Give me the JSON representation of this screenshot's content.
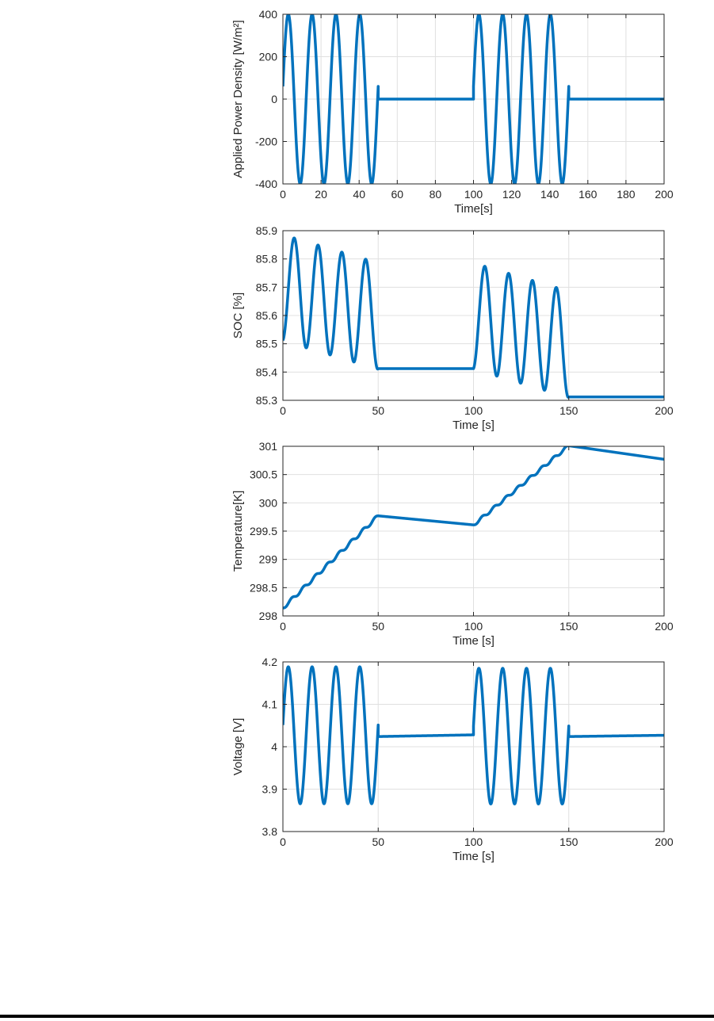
{
  "page": {
    "background": "#ffffff",
    "bottom_border_color": "#000000"
  },
  "chart_data": [
    {
      "id": "applied-power-density",
      "type": "line",
      "title": "",
      "xlabel": "Time[s]",
      "ylabel": "Applied Power Density [W/m²]",
      "xlim": [
        0,
        200
      ],
      "ylim": [
        -400,
        400
      ],
      "grid": true,
      "legend": "none",
      "line": {
        "color": "#0072BD",
        "width": 3.5
      },
      "xticks": {
        "values": [
          0,
          20,
          40,
          60,
          80,
          100,
          120,
          140,
          160,
          180,
          200
        ],
        "labels": [
          "0",
          "20",
          "40",
          "60",
          "80",
          "100",
          "120",
          "140",
          "160",
          "180",
          "200"
        ]
      },
      "yticks": {
        "values": [
          -400,
          -200,
          0,
          200,
          400
        ],
        "labels": [
          "-400",
          "-200",
          "0",
          "200",
          "400"
        ]
      },
      "description": "Sinusoidal power bursts of amplitude 400 W/m2, period 12.5 s, applied during 0-50 s and 100-150 s; zero during 50-100 s and 150-200 s.",
      "segments": [
        {
          "t0": 0,
          "t1": 50,
          "a": 0,
          "b": 0,
          "c": 400,
          "period": 12.5,
          "phase": -1.4208
        },
        {
          "t0": 50,
          "t1": 100,
          "a": 0,
          "b": 0,
          "c": 0,
          "period": 1,
          "phase": 0
        },
        {
          "t0": 100,
          "t1": 150,
          "a": 0,
          "b": 0,
          "c": 400,
          "period": 12.5,
          "phase": -1.4208
        },
        {
          "t0": 150,
          "t1": 200,
          "a": 0,
          "b": 0,
          "c": 0,
          "period": 1,
          "phase": 0
        }
      ]
    },
    {
      "id": "soc",
      "type": "line",
      "title": "",
      "xlabel": "Time [s]",
      "ylabel": "SOC [%]",
      "xlim": [
        0,
        200
      ],
      "ylim": [
        85.3,
        85.9
      ],
      "grid": true,
      "legend": "none",
      "line": {
        "color": "#0072BD",
        "width": 3.5
      },
      "xticks": {
        "values": [
          0,
          50,
          100,
          150,
          200
        ],
        "labels": [
          "0",
          "50",
          "100",
          "150",
          "200"
        ]
      },
      "yticks": {
        "values": [
          85.3,
          85.4,
          85.5,
          85.6,
          85.7,
          85.8,
          85.9
        ],
        "labels": [
          "85.3",
          "85.4",
          "85.5",
          "85.6",
          "85.7",
          "85.8",
          "85.9"
        ]
      },
      "description": "SOC starts at 85.51%, oscillates (peaks 85.87 down to 85.80, troughs 85.49 down to 85.44) during 0-50 s, holds 85.41% during 50-100 s, oscillates again (peaks 85.78 down to 85.71) during 100-150 s, holds 85.31% during 150-200 s.",
      "segments": [
        {
          "t0": 0,
          "t1": 50,
          "a": 85.698,
          "b": -0.002,
          "c": -0.188,
          "period": 12.5,
          "phase": 0.15
        },
        {
          "t0": 50,
          "t1": 100,
          "a": 85.412,
          "b": 0,
          "c": 0,
          "period": 1,
          "phase": 0
        },
        {
          "t0": 100,
          "t1": 150,
          "a": 85.598,
          "b": -0.002,
          "c": -0.188,
          "period": 12.5,
          "phase": 0.15
        },
        {
          "t0": 150,
          "t1": 200,
          "a": 85.312,
          "b": 0,
          "c": 0,
          "period": 1,
          "phase": 0
        }
      ]
    },
    {
      "id": "temperature",
      "type": "line",
      "title": "",
      "xlabel": "Time [s]",
      "ylabel": "Temperature[K]",
      "xlim": [
        0,
        200
      ],
      "ylim": [
        298,
        301
      ],
      "grid": true,
      "legend": "none",
      "line": {
        "color": "#0072BD",
        "width": 3.5
      },
      "xticks": {
        "values": [
          0,
          50,
          100,
          150,
          200
        ],
        "labels": [
          "0",
          "50",
          "100",
          "150",
          "200"
        ]
      },
      "yticks": {
        "values": [
          298,
          298.5,
          299,
          299.5,
          300,
          300.5,
          301
        ],
        "labels": [
          "298",
          "298.5",
          "299",
          "299.5",
          "300",
          "300.5",
          "301"
        ]
      },
      "description": "Temperature rises in a wavy staircase from 298.14 K to 299.77 K during 0-50 s, cools slowly to 299.61 K by 100 s, rises again in a wavy staircase to 301.0 K at 150 s, then cools linearly to about 300.77 K at 200 s.",
      "segments": [
        {
          "t0": 0,
          "t1": 50,
          "a": 298.14,
          "b": 0.0326,
          "c": 0.03,
          "period": 6.25,
          "phase": 1.5708
        },
        {
          "t0": 50,
          "t1": 100,
          "a": 299.77,
          "b": -0.0032,
          "c": 0,
          "period": 1,
          "phase": 0
        },
        {
          "t0": 100,
          "t1": 150,
          "a": 299.61,
          "b": 0.028,
          "c": 0.026,
          "period": 6.25,
          "phase": 1.5708
        },
        {
          "t0": 150,
          "t1": 200,
          "a": 301.01,
          "b": -0.0048,
          "c": 0,
          "period": 1,
          "phase": 0
        }
      ]
    },
    {
      "id": "voltage",
      "type": "line",
      "title": "",
      "xlabel": "Time [s]",
      "ylabel": "Voltage [V]",
      "xlim": [
        0,
        200
      ],
      "ylim": [
        3.8,
        4.2
      ],
      "grid": true,
      "legend": "none",
      "line": {
        "color": "#0072BD",
        "width": 3.5
      },
      "xticks": {
        "values": [
          0,
          50,
          100,
          150,
          200
        ],
        "labels": [
          "0",
          "50",
          "100",
          "150",
          "200"
        ]
      },
      "yticks": {
        "values": [
          3.8,
          3.9,
          4.0,
          4.1,
          4.2
        ],
        "labels": [
          "3.8",
          "3.9",
          "4",
          "4.1",
          "4.2"
        ]
      },
      "description": "Voltage oscillates between about 4.19 V and 3.86 V (period 12.5 s) during 0-50 s, rests at about 4.025 V during 50-100 s, oscillates again during 100-150 s, then rests at about 4.025 V during 150-200 s.",
      "segments": [
        {
          "t0": 0,
          "t1": 50,
          "a": 4.027,
          "b": 0,
          "c": 0.1615,
          "period": 12.5,
          "phase": -1.4208
        },
        {
          "t0": 50,
          "t1": 100,
          "a": 4.024,
          "b": 8e-05,
          "c": 0,
          "period": 1,
          "phase": 0
        },
        {
          "t0": 100,
          "t1": 150,
          "a": 4.025,
          "b": 0,
          "c": 0.16,
          "period": 12.5,
          "phase": -1.4208
        },
        {
          "t0": 150,
          "t1": 200,
          "a": 4.024,
          "b": 6e-05,
          "c": 0,
          "period": 1,
          "phase": 0
        }
      ]
    }
  ]
}
